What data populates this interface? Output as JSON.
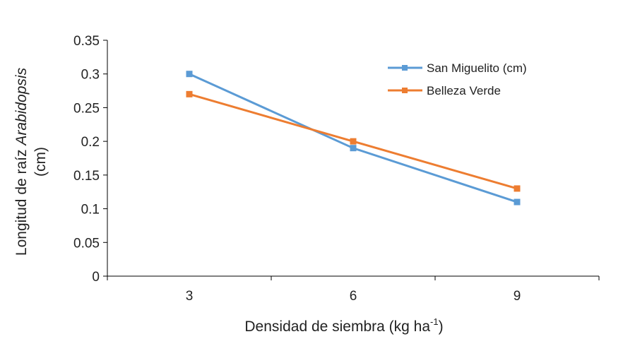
{
  "chart_data": {
    "type": "line",
    "x": [
      3,
      6,
      9
    ],
    "categories": [
      "3",
      "6",
      "9"
    ],
    "series": [
      {
        "name": "San Miguelito (cm)",
        "color": "#5B9BD5",
        "values": [
          0.3,
          0.19,
          0.11
        ]
      },
      {
        "name": "Belleza Verde",
        "color": "#ED7D31",
        "values": [
          0.27,
          0.2,
          0.13
        ]
      }
    ],
    "xlabel": "Densidad de siembra (kg ha",
    "xlabel_sup": "-1",
    "xlabel_tail": ")",
    "ylabel_line1_prefix": "Longitud de raíz ",
    "ylabel_line1_italic": "Arabidopsis",
    "ylabel_line2": "(cm)",
    "ylim": [
      0,
      0.35
    ],
    "yticks": [
      "0",
      "0.05",
      "0.1",
      "0.15",
      "0.2",
      "0.25",
      "0.3",
      "0.35"
    ],
    "ytick_values": [
      0,
      0.05,
      0.1,
      0.15,
      0.2,
      0.25,
      0.3,
      0.35
    ],
    "grid": false,
    "legend": "top-right"
  }
}
